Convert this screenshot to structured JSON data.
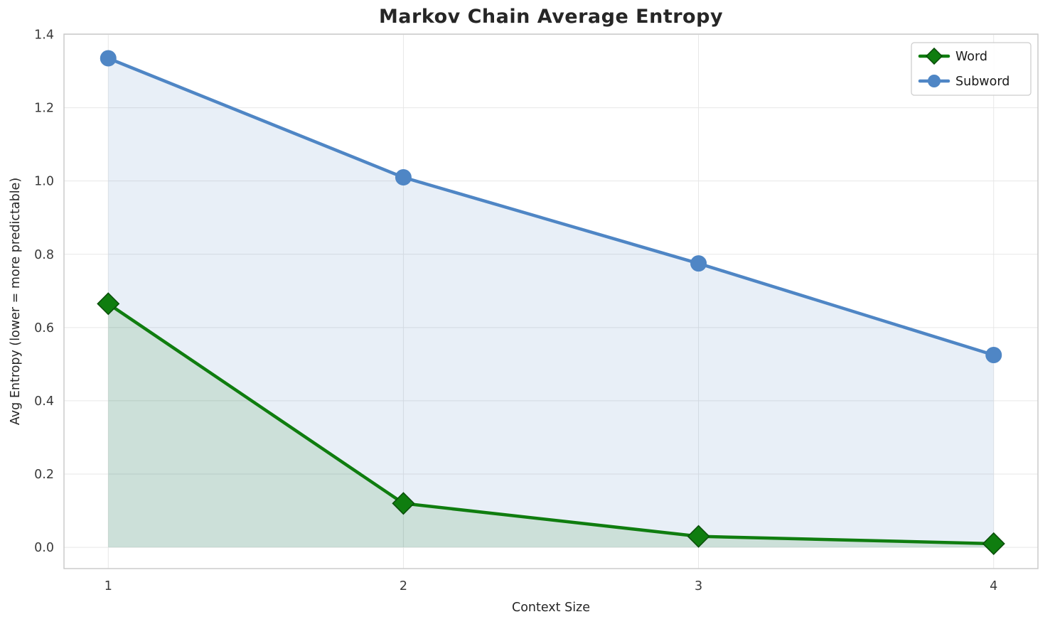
{
  "chart_data": {
    "type": "line",
    "title": "Markov Chain Average Entropy",
    "xlabel": "Context Size",
    "ylabel": "Avg Entropy (lower = more predictable)",
    "x": [
      1,
      2,
      3,
      4
    ],
    "series": [
      {
        "name": "Word",
        "marker": "diamond",
        "color": "#0f7d0f",
        "marker_edge_color": "#0a4d0a",
        "fill_opacity": 0.13,
        "values": [
          0.665,
          0.12,
          0.03,
          0.01
        ]
      },
      {
        "name": "Subword",
        "marker": "circle",
        "color": "#4f86c5",
        "marker_edge_color": "#4f86c5",
        "fill_opacity": 0.13,
        "values": [
          1.335,
          1.01,
          0.775,
          0.525
        ]
      }
    ],
    "xticks": [
      1,
      2,
      3,
      4
    ],
    "yticks": [
      0.0,
      0.2,
      0.4,
      0.6,
      0.8,
      1.0,
      1.2,
      1.4
    ],
    "xlim": [
      0.85,
      4.15
    ],
    "ylim": [
      -0.058,
      1.401
    ],
    "fill_baseline": 0,
    "grid": true,
    "legend_position": "upper right",
    "colors": {
      "grid": "#e7e7e7",
      "spine": "#c8c8c8",
      "tick_label": "#3a3a3a",
      "legend_border": "#cccccc",
      "legend_text": "#1a1a1a"
    }
  }
}
